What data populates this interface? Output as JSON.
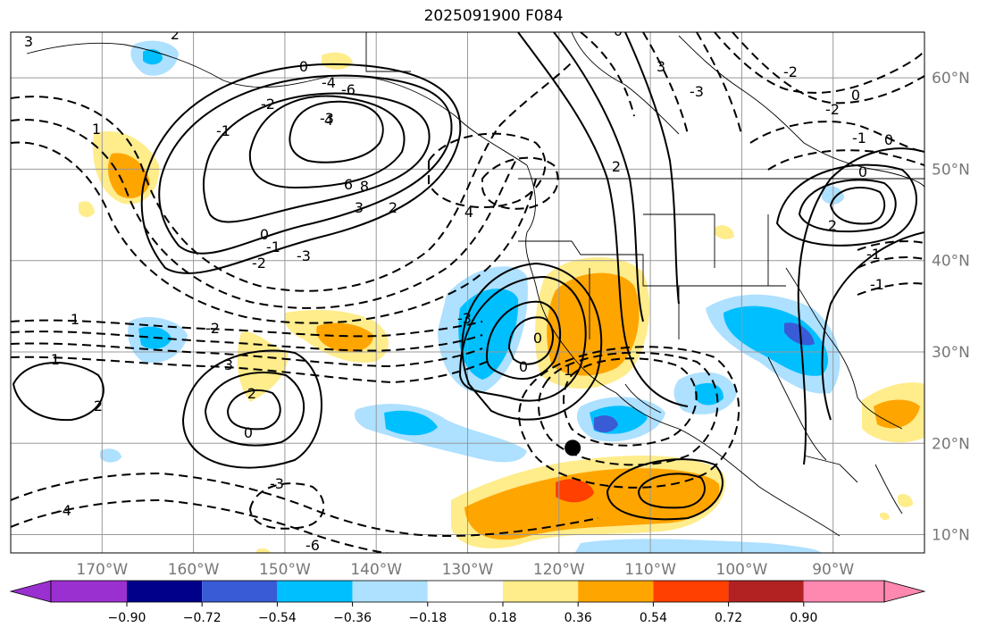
{
  "title": "2025091900 F084",
  "map": {
    "lon_range": [
      -180,
      -80
    ],
    "lat_range": [
      8,
      65
    ],
    "lon_ticks": [
      {
        "value": -170,
        "label": "170°W"
      },
      {
        "value": -160,
        "label": "160°W"
      },
      {
        "value": -150,
        "label": "150°W"
      },
      {
        "value": -140,
        "label": "140°W"
      },
      {
        "value": -130,
        "label": "130°W"
      },
      {
        "value": -120,
        "label": "120°W"
      },
      {
        "value": -110,
        "label": "110°W"
      },
      {
        "value": -100,
        "label": "100°W"
      },
      {
        "value": -90,
        "label": "90°W"
      }
    ],
    "lat_ticks": [
      {
        "value": 60,
        "label": "60°N"
      },
      {
        "value": 50,
        "label": "50°N"
      },
      {
        "value": 40,
        "label": "40°N"
      },
      {
        "value": 30,
        "label": "30°N"
      },
      {
        "value": 20,
        "label": "20°N"
      },
      {
        "value": 10,
        "label": "10°N"
      }
    ],
    "grid": true,
    "marker": {
      "lon": -118.5,
      "lat": 19.5,
      "color": "#000000"
    }
  },
  "colorbar": {
    "extend": "both",
    "colors": [
      "#9b30d0",
      "#00008b",
      "#3a5bd6",
      "#00bfff",
      "#aee0ff",
      "#ffffff",
      "#ffec8b",
      "#ffa500",
      "#ff4000",
      "#b22222",
      "#ff88b0"
    ],
    "tick_labels": [
      "−0.90",
      "−0.72",
      "−0.54",
      "−0.36",
      "−0.18",
      "0.18",
      "0.36",
      "0.54",
      "0.72",
      "0.90"
    ]
  },
  "contour_labels": [
    "3",
    "2",
    "1",
    "0",
    "-1",
    "-2",
    "-3",
    "-4",
    "-6",
    "4",
    "6",
    "8",
    "3",
    "2",
    "0",
    "-1",
    "-2",
    "-3",
    "4",
    "2",
    "0",
    "3",
    "-3",
    "-2",
    "0",
    "-2",
    "-1",
    "0",
    "0",
    "2",
    "-1",
    "-1",
    "1",
    "-2",
    "1",
    "2",
    "3",
    "2",
    "0",
    "-3",
    "-4",
    "-6",
    "-3",
    "0",
    "0",
    "1"
  ]
}
